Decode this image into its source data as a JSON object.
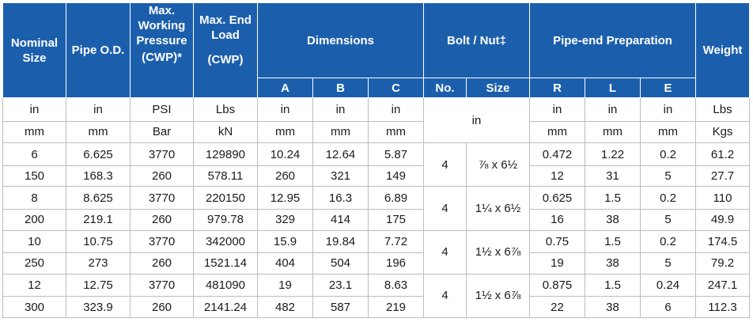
{
  "header": {
    "nominal_size": "Nominal Size",
    "pipe_od": "Pipe O.D.",
    "cwp_line1": "Max. Working Pressure",
    "cwp_line2": "(CWP)*",
    "end_load_line1": "Max. End Load",
    "end_load_line2": "(CWP)",
    "dimensions": "Dimensions",
    "dim_a": "A",
    "dim_b": "B",
    "dim_c": "C",
    "bolt_nut": "Bolt / Nut‡",
    "bolt_no": "No.",
    "bolt_size": "Size",
    "pipe_end": "Pipe-end Preparation",
    "pe_r": "R",
    "pe_l": "L",
    "pe_e": "E",
    "weight": "Weight"
  },
  "units": {
    "imperial": [
      "in",
      "in",
      "PSI",
      "Lbs",
      "in",
      "in",
      "in",
      "in",
      "in",
      "in",
      "in",
      "Lbs"
    ],
    "metric": [
      "mm",
      "mm",
      "Bar",
      "kN",
      "mm",
      "mm",
      "mm",
      "mm",
      "mm",
      "mm",
      "Kgs"
    ]
  },
  "rows": [
    {
      "imperial": [
        "6",
        "6.625",
        "3770",
        "129890",
        "10.24",
        "12.64",
        "5.87"
      ],
      "metric": [
        "150",
        "168.3",
        "260",
        "578.11",
        "260",
        "321",
        "149"
      ],
      "bolt_no": "4",
      "bolt_size": "⅞ x 6½",
      "imperial_tail": [
        "0.472",
        "1.22",
        "0.2",
        "61.2"
      ],
      "metric_tail": [
        "12",
        "31",
        "5",
        "27.7"
      ]
    },
    {
      "imperial": [
        "8",
        "8.625",
        "3770",
        "220150",
        "12.95",
        "16.3",
        "6.89"
      ],
      "metric": [
        "200",
        "219.1",
        "260",
        "979.78",
        "329",
        "414",
        "175"
      ],
      "bolt_no": "4",
      "bolt_size": "1¼ x 6½",
      "imperial_tail": [
        "0.625",
        "1.5",
        "0.2",
        "110"
      ],
      "metric_tail": [
        "16",
        "38",
        "5",
        "49.9"
      ]
    },
    {
      "imperial": [
        "10",
        "10.75",
        "3770",
        "342000",
        "15.9",
        "19.84",
        "7.72"
      ],
      "metric": [
        "250",
        "273",
        "260",
        "1521.14",
        "404",
        "504",
        "196"
      ],
      "bolt_no": "4",
      "bolt_size": "1½ x 6⅞",
      "imperial_tail": [
        "0.75",
        "1.5",
        "0.2",
        "174.5"
      ],
      "metric_tail": [
        "19",
        "38",
        "5",
        "79.2"
      ]
    },
    {
      "imperial": [
        "12",
        "12.75",
        "3770",
        "481090",
        "19",
        "23.1",
        "8.63"
      ],
      "metric": [
        "300",
        "323.9",
        "260",
        "2141.24",
        "482",
        "587",
        "219"
      ],
      "bolt_no": "4",
      "bolt_size": "1½ x 6⅞",
      "imperial_tail": [
        "0.875",
        "1.5",
        "0.24",
        "247.1"
      ],
      "metric_tail": [
        "22",
        "38",
        "6",
        "112.3"
      ]
    }
  ]
}
